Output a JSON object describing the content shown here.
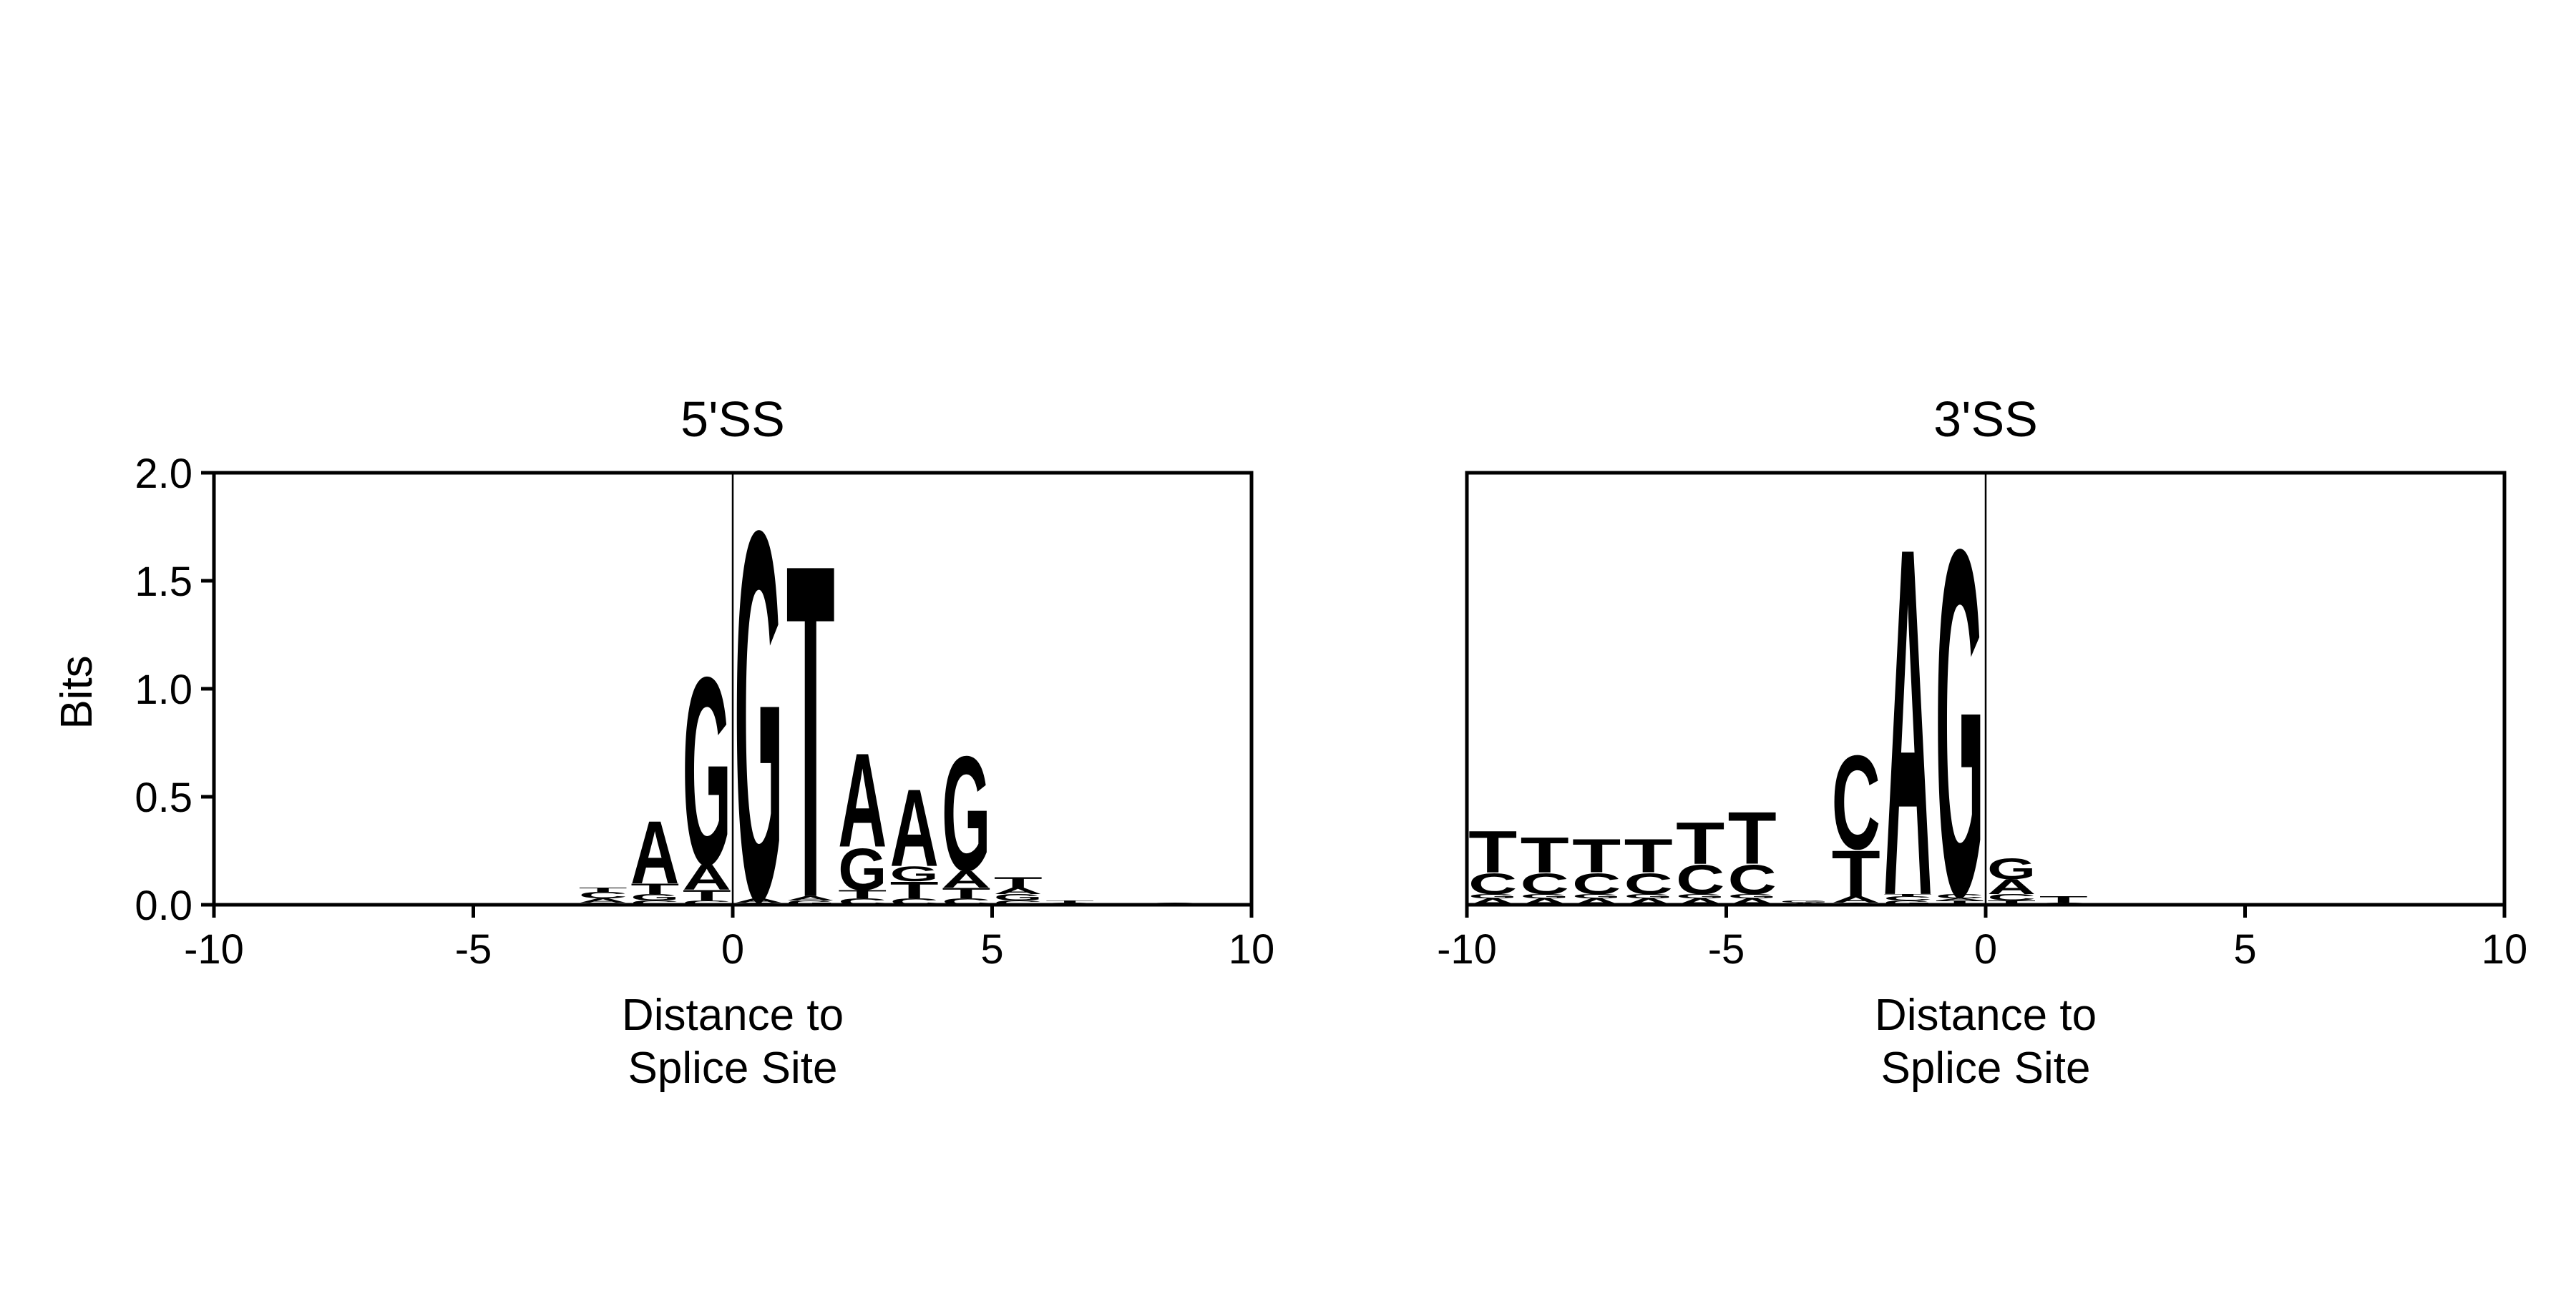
{
  "ylabel": "Bits",
  "colors": {
    "A": "#33b966",
    "C": "#3a46a0",
    "G": "#ffe071",
    "T": "#ff0a4c"
  },
  "chart_data": [
    {
      "type": "sequence-logo",
      "title": "5'SS",
      "xlabel_lines": [
        "Distance to",
        "Splice Site"
      ],
      "xlim": [
        -10,
        10
      ],
      "ylim": [
        0,
        2.0
      ],
      "xticks": [
        "-10",
        "-5",
        "0",
        "5",
        "10"
      ],
      "xtick_values": [
        -10,
        -5,
        0,
        5,
        10
      ],
      "yticks": [
        "0.0",
        "0.5",
        "1.0",
        "1.5",
        "2.0"
      ],
      "ytick_values": [
        0,
        0.5,
        1.0,
        1.5,
        2.0
      ],
      "reference_line_x": 0,
      "positions": [
        {
          "x": -2.5,
          "stack": [
            [
              "G",
              0.01
            ],
            [
              "A",
              0.02
            ],
            [
              "C",
              0.03
            ],
            [
              "T",
              0.02
            ]
          ]
        },
        {
          "x": -1.5,
          "stack": [
            [
              "C",
              0.02
            ],
            [
              "G",
              0.03
            ],
            [
              "T",
              0.05
            ],
            [
              "A",
              0.3
            ]
          ]
        },
        {
          "x": -0.5,
          "stack": [
            [
              "C",
              0.02
            ],
            [
              "T",
              0.05
            ],
            [
              "A",
              0.12
            ],
            [
              "G",
              0.9
            ]
          ]
        },
        {
          "x": 0.5,
          "stack": [
            [
              "C",
              0.01
            ],
            [
              "A",
              0.02
            ],
            [
              "G",
              1.77
            ]
          ]
        },
        {
          "x": 1.5,
          "stack": [
            [
              "G",
              0.02
            ],
            [
              "A",
              0.02
            ],
            [
              "T",
              1.6
            ]
          ]
        },
        {
          "x": 2.5,
          "stack": [
            [
              "C",
              0.03
            ],
            [
              "T",
              0.04
            ],
            [
              "G",
              0.2
            ],
            [
              "A",
              0.45
            ]
          ]
        },
        {
          "x": 3.5,
          "stack": [
            [
              "C",
              0.03
            ],
            [
              "T",
              0.08
            ],
            [
              "G",
              0.07
            ],
            [
              "A",
              0.37
            ]
          ]
        },
        {
          "x": 4.5,
          "stack": [
            [
              "C",
              0.03
            ],
            [
              "T",
              0.05
            ],
            [
              "A",
              0.08
            ],
            [
              "G",
              0.55
            ]
          ]
        },
        {
          "x": 5.5,
          "stack": [
            [
              "C",
              0.02
            ],
            [
              "G",
              0.03
            ],
            [
              "A",
              0.03
            ],
            [
              "T",
              0.05
            ]
          ]
        },
        {
          "x": 6.5,
          "stack": [
            [
              "G",
              0.01
            ],
            [
              "T",
              0.01
            ]
          ]
        },
        {
          "x": 8.5,
          "stack": [
            [
              "C",
              0.01
            ]
          ]
        }
      ]
    },
    {
      "type": "sequence-logo",
      "title": "3'SS",
      "xlabel_lines": [
        "Distance to",
        "Splice Site"
      ],
      "xlim": [
        -10,
        10
      ],
      "ylim": [
        0,
        2.0
      ],
      "xticks": [
        "-10",
        "-5",
        "0",
        "5",
        "10"
      ],
      "xtick_values": [
        -10,
        -5,
        0,
        5,
        10
      ],
      "yticks": [
        "0.0",
        "0.5",
        "1.0",
        "1.5",
        "2.0"
      ],
      "ytick_values": [
        0,
        0.5,
        1.0,
        1.5,
        2.0
      ],
      "reference_line_x": 0,
      "positions": [
        {
          "x": -9.5,
          "stack": [
            [
              "A",
              0.03
            ],
            [
              "G",
              0.02
            ],
            [
              "C",
              0.1
            ],
            [
              "T",
              0.2
            ]
          ]
        },
        {
          "x": -8.5,
          "stack": [
            [
              "A",
              0.03
            ],
            [
              "G",
              0.02
            ],
            [
              "C",
              0.1
            ],
            [
              "T",
              0.17
            ]
          ]
        },
        {
          "x": -7.5,
          "stack": [
            [
              "A",
              0.03
            ],
            [
              "G",
              0.02
            ],
            [
              "C",
              0.1
            ],
            [
              "T",
              0.16
            ]
          ]
        },
        {
          "x": -6.5,
          "stack": [
            [
              "A",
              0.03
            ],
            [
              "G",
              0.02
            ],
            [
              "C",
              0.1
            ],
            [
              "T",
              0.16
            ]
          ]
        },
        {
          "x": -5.5,
          "stack": [
            [
              "A",
              0.03
            ],
            [
              "G",
              0.02
            ],
            [
              "C",
              0.14
            ],
            [
              "T",
              0.2
            ]
          ]
        },
        {
          "x": -4.5,
          "stack": [
            [
              "A",
              0.03
            ],
            [
              "G",
              0.02
            ],
            [
              "C",
              0.14
            ],
            [
              "T",
              0.25
            ]
          ]
        },
        {
          "x": -3.5,
          "stack": [
            [
              "A",
              0.01
            ],
            [
              "G",
              0.01
            ]
          ]
        },
        {
          "x": -2.5,
          "stack": [
            [
              "G",
              0.01
            ],
            [
              "A",
              0.03
            ],
            [
              "T",
              0.22
            ],
            [
              "C",
              0.45
            ]
          ]
        },
        {
          "x": -1.5,
          "stack": [
            [
              "G",
              0.02
            ],
            [
              "C",
              0.02
            ],
            [
              "T",
              0.01
            ],
            [
              "A",
              1.67
            ]
          ]
        },
        {
          "x": -0.5,
          "stack": [
            [
              "T",
              0.02
            ],
            [
              "A",
              0.01
            ],
            [
              "C",
              0.02
            ],
            [
              "G",
              1.66
            ]
          ]
        },
        {
          "x": 0.5,
          "stack": [
            [
              "T",
              0.02
            ],
            [
              "C",
              0.03
            ],
            [
              "A",
              0.07
            ],
            [
              "G",
              0.1
            ]
          ]
        },
        {
          "x": 1.5,
          "stack": [
            [
              "C",
              0.01
            ],
            [
              "T",
              0.03
            ]
          ]
        }
      ]
    }
  ]
}
